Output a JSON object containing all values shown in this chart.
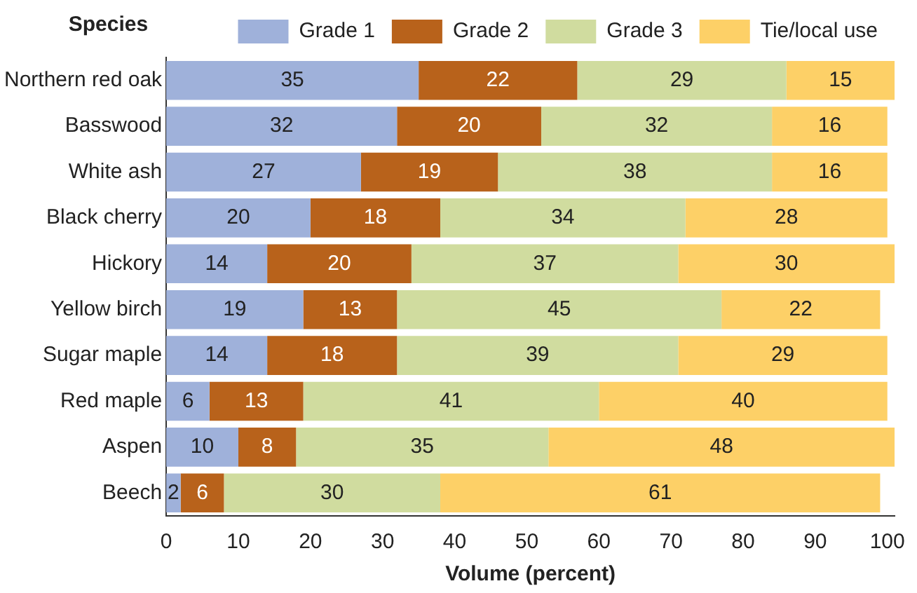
{
  "chart_data": {
    "type": "bar",
    "orientation": "horizontal",
    "stacked": true,
    "ylabel": "Species",
    "xlabel": "Volume (percent)",
    "categories": [
      "Northern red oak",
      "Basswood",
      "White ash",
      "Black cherry",
      "Hickory",
      "Yellow birch",
      "Sugar maple",
      "Red maple",
      "Aspen",
      "Beech"
    ],
    "series": [
      {
        "name": "Grade 1",
        "color": "#9fb1da",
        "values": [
          35,
          32,
          27,
          20,
          14,
          19,
          14,
          6,
          10,
          2
        ]
      },
      {
        "name": "Grade 2",
        "color": "#b8621b",
        "values": [
          22,
          20,
          19,
          18,
          20,
          13,
          18,
          13,
          8,
          6
        ]
      },
      {
        "name": "Grade 3",
        "color": "#d0dc9f",
        "values": [
          29,
          32,
          38,
          34,
          37,
          45,
          39,
          41,
          35,
          30
        ]
      },
      {
        "name": "Tie/local use",
        "color": "#fdd067",
        "values": [
          15,
          16,
          16,
          28,
          30,
          22,
          29,
          40,
          48,
          61
        ]
      }
    ],
    "xlim": [
      0,
      101
    ],
    "xticks": [
      0,
      10,
      20,
      30,
      40,
      50,
      60,
      70,
      80,
      90,
      100
    ],
    "legend": "top",
    "data_labels": true,
    "grid": false
  }
}
